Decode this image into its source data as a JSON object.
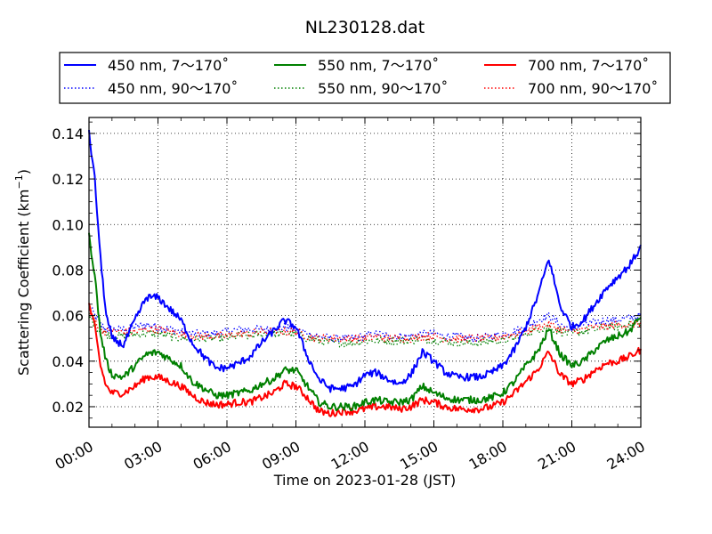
{
  "chart_data": {
    "type": "line",
    "title": "NL230128.dat",
    "xlabel": "Time on 2023-01-28 (JST)",
    "ylabel_main": "Scattering Coefficient (km",
    "ylabel_sup": "−1",
    "ylabel_close": ")",
    "xlim_hours": [
      0,
      24
    ],
    "ylim": [
      0.011,
      0.147
    ],
    "x_ticks": [
      {
        "h": 0,
        "label": "00:00"
      },
      {
        "h": 3,
        "label": "03:00"
      },
      {
        "h": 6,
        "label": "06:00"
      },
      {
        "h": 9,
        "label": "09:00"
      },
      {
        "h": 12,
        "label": "12:00"
      },
      {
        "h": 15,
        "label": "15:00"
      },
      {
        "h": 18,
        "label": "18:00"
      },
      {
        "h": 21,
        "label": "21:00"
      },
      {
        "h": 24,
        "label": "24:00"
      }
    ],
    "y_ticks": [
      {
        "v": 0.02,
        "label": "0.02"
      },
      {
        "v": 0.04,
        "label": "0.04"
      },
      {
        "v": 0.06,
        "label": "0.06"
      },
      {
        "v": 0.08,
        "label": "0.08"
      },
      {
        "v": 0.1,
        "label": "0.10"
      },
      {
        "v": 0.12,
        "label": "0.12"
      },
      {
        "v": 0.14,
        "label": "0.14"
      }
    ],
    "grid": true,
    "legend_position": "top",
    "series": [
      {
        "name": "450 nm, 7～170˚",
        "color": "#0000ff",
        "style": "solid",
        "x": [
          0,
          0.25,
          0.5,
          0.75,
          1,
          1.5,
          2,
          2.5,
          3,
          3.5,
          4,
          4.5,
          5,
          5.5,
          6,
          6.5,
          7,
          7.5,
          8,
          8.5,
          9,
          9.5,
          10,
          10.5,
          11,
          11.5,
          12,
          12.5,
          13,
          13.5,
          14,
          14.5,
          15,
          15.5,
          16,
          16.5,
          17,
          17.5,
          18,
          18.5,
          19,
          19.5,
          20,
          20.5,
          21,
          21.5,
          22,
          22.5,
          23,
          23.5,
          24
        ],
        "y": [
          0.14,
          0.12,
          0.085,
          0.06,
          0.05,
          0.047,
          0.058,
          0.068,
          0.068,
          0.063,
          0.058,
          0.048,
          0.042,
          0.037,
          0.037,
          0.039,
          0.042,
          0.048,
          0.053,
          0.058,
          0.055,
          0.042,
          0.032,
          0.028,
          0.028,
          0.029,
          0.034,
          0.035,
          0.032,
          0.03,
          0.034,
          0.044,
          0.04,
          0.035,
          0.033,
          0.033,
          0.033,
          0.035,
          0.038,
          0.045,
          0.055,
          0.068,
          0.085,
          0.064,
          0.055,
          0.058,
          0.065,
          0.072,
          0.077,
          0.082,
          0.09
        ]
      },
      {
        "name": "550 nm, 7～170˚",
        "color": "#008000",
        "style": "solid",
        "x": [
          0,
          0.25,
          0.5,
          0.75,
          1,
          1.5,
          2,
          2.5,
          3,
          3.5,
          4,
          4.5,
          5,
          5.5,
          6,
          6.5,
          7,
          7.5,
          8,
          8.5,
          9,
          9.5,
          10,
          10.5,
          11,
          11.5,
          12,
          12.5,
          13,
          13.5,
          14,
          14.5,
          15,
          15.5,
          16,
          16.5,
          17,
          17.5,
          18,
          18.5,
          19,
          19.5,
          20,
          20.5,
          21,
          21.5,
          22,
          22.5,
          23,
          23.5,
          24
        ],
        "y": [
          0.095,
          0.078,
          0.052,
          0.04,
          0.034,
          0.033,
          0.038,
          0.043,
          0.044,
          0.041,
          0.038,
          0.031,
          0.028,
          0.025,
          0.025,
          0.026,
          0.027,
          0.03,
          0.032,
          0.036,
          0.036,
          0.029,
          0.022,
          0.02,
          0.02,
          0.02,
          0.022,
          0.023,
          0.022,
          0.022,
          0.023,
          0.029,
          0.026,
          0.024,
          0.023,
          0.023,
          0.023,
          0.024,
          0.026,
          0.031,
          0.038,
          0.044,
          0.054,
          0.043,
          0.038,
          0.04,
          0.045,
          0.049,
          0.051,
          0.053,
          0.06
        ]
      },
      {
        "name": "700 nm, 7～170˚",
        "color": "#ff0000",
        "style": "solid",
        "x": [
          0,
          0.25,
          0.5,
          0.75,
          1,
          1.5,
          2,
          2.5,
          3,
          3.5,
          4,
          4.5,
          5,
          5.5,
          6,
          6.5,
          7,
          7.5,
          8,
          8.5,
          9,
          9.5,
          10,
          10.5,
          11,
          11.5,
          12,
          12.5,
          13,
          13.5,
          14,
          14.5,
          15,
          15.5,
          16,
          16.5,
          17,
          17.5,
          18,
          18.5,
          19,
          19.5,
          20,
          20.5,
          21,
          21.5,
          22,
          22.5,
          23,
          23.5,
          24
        ],
        "y": [
          0.065,
          0.055,
          0.038,
          0.029,
          0.026,
          0.026,
          0.029,
          0.033,
          0.033,
          0.031,
          0.029,
          0.025,
          0.022,
          0.021,
          0.021,
          0.022,
          0.022,
          0.024,
          0.026,
          0.03,
          0.029,
          0.024,
          0.018,
          0.017,
          0.018,
          0.018,
          0.019,
          0.02,
          0.02,
          0.019,
          0.02,
          0.023,
          0.022,
          0.02,
          0.019,
          0.019,
          0.019,
          0.02,
          0.022,
          0.026,
          0.031,
          0.036,
          0.044,
          0.034,
          0.03,
          0.032,
          0.036,
          0.039,
          0.04,
          0.042,
          0.045
        ]
      },
      {
        "name": "450 nm, 90～170˚",
        "color": "#0000ff",
        "style": "dotted",
        "x": [
          0,
          0.25,
          0.5,
          0.75,
          1,
          1.5,
          2,
          2.5,
          3,
          3.5,
          4,
          4.5,
          5,
          5.5,
          6,
          6.5,
          7,
          7.5,
          8,
          8.5,
          9,
          9.5,
          10,
          10.5,
          11,
          11.5,
          12,
          12.5,
          13,
          13.5,
          14,
          14.5,
          15,
          15.5,
          16,
          16.5,
          17,
          17.5,
          18,
          18.5,
          19,
          19.5,
          20,
          20.5,
          21,
          21.5,
          22,
          22.5,
          23,
          23.5,
          24
        ],
        "y": [
          0.064,
          0.06,
          0.056,
          0.054,
          0.054,
          0.054,
          0.055,
          0.056,
          0.055,
          0.054,
          0.053,
          0.052,
          0.052,
          0.052,
          0.053,
          0.054,
          0.054,
          0.054,
          0.054,
          0.055,
          0.054,
          0.052,
          0.051,
          0.05,
          0.05,
          0.05,
          0.051,
          0.052,
          0.051,
          0.051,
          0.051,
          0.052,
          0.052,
          0.051,
          0.051,
          0.05,
          0.05,
          0.051,
          0.052,
          0.053,
          0.055,
          0.058,
          0.06,
          0.056,
          0.054,
          0.056,
          0.057,
          0.058,
          0.058,
          0.059,
          0.06
        ]
      },
      {
        "name": "550 nm, 90～170˚",
        "color": "#008000",
        "style": "dotted",
        "x": [
          0,
          0.25,
          0.5,
          0.75,
          1,
          1.5,
          2,
          2.5,
          3,
          3.5,
          4,
          4.5,
          5,
          5.5,
          6,
          6.5,
          7,
          7.5,
          8,
          8.5,
          9,
          9.5,
          10,
          10.5,
          11,
          11.5,
          12,
          12.5,
          13,
          13.5,
          14,
          14.5,
          15,
          15.5,
          16,
          16.5,
          17,
          17.5,
          18,
          18.5,
          19,
          19.5,
          20,
          20.5,
          21,
          21.5,
          22,
          22.5,
          23,
          23.5,
          24
        ],
        "y": [
          0.06,
          0.056,
          0.053,
          0.052,
          0.051,
          0.051,
          0.052,
          0.052,
          0.052,
          0.051,
          0.05,
          0.05,
          0.05,
          0.05,
          0.05,
          0.051,
          0.051,
          0.052,
          0.052,
          0.052,
          0.052,
          0.05,
          0.049,
          0.048,
          0.048,
          0.048,
          0.049,
          0.049,
          0.049,
          0.049,
          0.049,
          0.05,
          0.049,
          0.049,
          0.048,
          0.048,
          0.048,
          0.049,
          0.049,
          0.05,
          0.052,
          0.054,
          0.055,
          0.053,
          0.052,
          0.053,
          0.054,
          0.055,
          0.055,
          0.056,
          0.057
        ]
      },
      {
        "name": "700 nm, 90～170˚",
        "color": "#ff0000",
        "style": "dotted",
        "x": [
          0,
          0.25,
          0.5,
          0.75,
          1,
          1.5,
          2,
          2.5,
          3,
          3.5,
          4,
          4.5,
          5,
          5.5,
          6,
          6.5,
          7,
          7.5,
          8,
          8.5,
          9,
          9.5,
          10,
          10.5,
          11,
          11.5,
          12,
          12.5,
          13,
          13.5,
          14,
          14.5,
          15,
          15.5,
          16,
          16.5,
          17,
          17.5,
          18,
          18.5,
          19,
          19.5,
          20,
          20.5,
          21,
          21.5,
          22,
          22.5,
          23,
          23.5,
          24
        ],
        "y": [
          0.062,
          0.058,
          0.054,
          0.053,
          0.053,
          0.053,
          0.053,
          0.054,
          0.054,
          0.053,
          0.052,
          0.051,
          0.051,
          0.051,
          0.051,
          0.052,
          0.052,
          0.053,
          0.053,
          0.053,
          0.053,
          0.051,
          0.05,
          0.05,
          0.05,
          0.05,
          0.05,
          0.051,
          0.05,
          0.05,
          0.05,
          0.051,
          0.051,
          0.05,
          0.05,
          0.05,
          0.05,
          0.05,
          0.051,
          0.052,
          0.053,
          0.055,
          0.056,
          0.054,
          0.053,
          0.054,
          0.055,
          0.055,
          0.056,
          0.056,
          0.057
        ]
      }
    ]
  }
}
